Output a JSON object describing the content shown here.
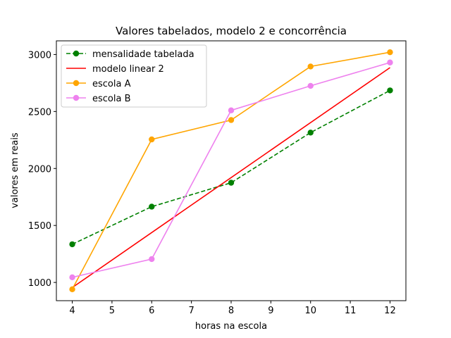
{
  "chart_data": {
    "type": "line",
    "title": "Valores tabelados, modelo 2 e concorrência",
    "xlabel": "horas na escola",
    "ylabel": "valores em reais",
    "xlim": [
      3.6,
      12.4
    ],
    "ylim": [
      840,
      3120
    ],
    "xticks": [
      4,
      5,
      6,
      7,
      8,
      9,
      10,
      11,
      12
    ],
    "yticks": [
      1000,
      1500,
      2000,
      2500,
      3000
    ],
    "grid": false,
    "legend_position": "top-left",
    "series": [
      {
        "name": "mensalidade tabelada",
        "color": "#008000",
        "style": "dashed",
        "marker": true,
        "x": [
          4,
          6,
          8,
          10,
          12
        ],
        "y": [
          1335,
          1665,
          1875,
          2315,
          2685
        ]
      },
      {
        "name": "modelo linear 2",
        "color": "#ff0000",
        "style": "solid",
        "marker": false,
        "x": [
          4,
          12
        ],
        "y": [
          955,
          2885
        ]
      },
      {
        "name": "escola A",
        "color": "#ffa500",
        "style": "solid",
        "marker": true,
        "x": [
          4,
          6,
          8,
          10,
          12
        ],
        "y": [
          940,
          2255,
          2425,
          2895,
          3020
        ]
      },
      {
        "name": "escola B",
        "color": "#ee82ee",
        "style": "solid",
        "marker": true,
        "x": [
          4,
          6,
          8,
          10,
          12
        ],
        "y": [
          1045,
          1205,
          2510,
          2725,
          2930
        ]
      }
    ]
  }
}
